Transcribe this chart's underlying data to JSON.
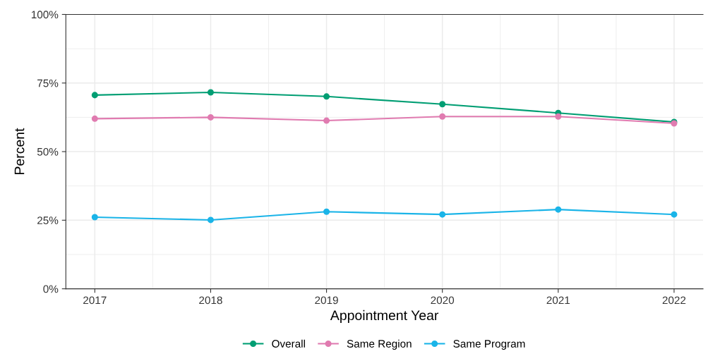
{
  "chart_data": {
    "type": "line",
    "xlabel": "Appointment Year",
    "ylabel": "Percent",
    "x": [
      2017,
      2018,
      2019,
      2020,
      2021,
      2022
    ],
    "series": [
      {
        "name": "Overall",
        "color": "#009e73",
        "values": [
          70.6,
          71.6,
          70.1,
          67.3,
          64.1,
          60.8
        ]
      },
      {
        "name": "Same Region",
        "color": "#e07bb0",
        "values": [
          62.0,
          62.5,
          61.3,
          62.8,
          62.8,
          60.3
        ]
      },
      {
        "name": "Same Program",
        "color": "#1ab4e8",
        "values": [
          26.1,
          25.1,
          28.1,
          27.1,
          28.9,
          27.1
        ]
      }
    ],
    "xlim": [
      2016.75,
      2022.25
    ],
    "ylim": [
      0,
      100
    ],
    "xticks": [
      2017,
      2018,
      2019,
      2020,
      2021,
      2022
    ],
    "yticks": [
      {
        "value": 0,
        "label": "0%"
      },
      {
        "value": 25,
        "label": "25%"
      },
      {
        "value": 50,
        "label": "50%"
      },
      {
        "value": 75,
        "label": "75%"
      },
      {
        "value": 100,
        "label": "100%"
      }
    ],
    "grid": true,
    "legend": "bottom",
    "marker": "circle",
    "line_style": "solid"
  }
}
